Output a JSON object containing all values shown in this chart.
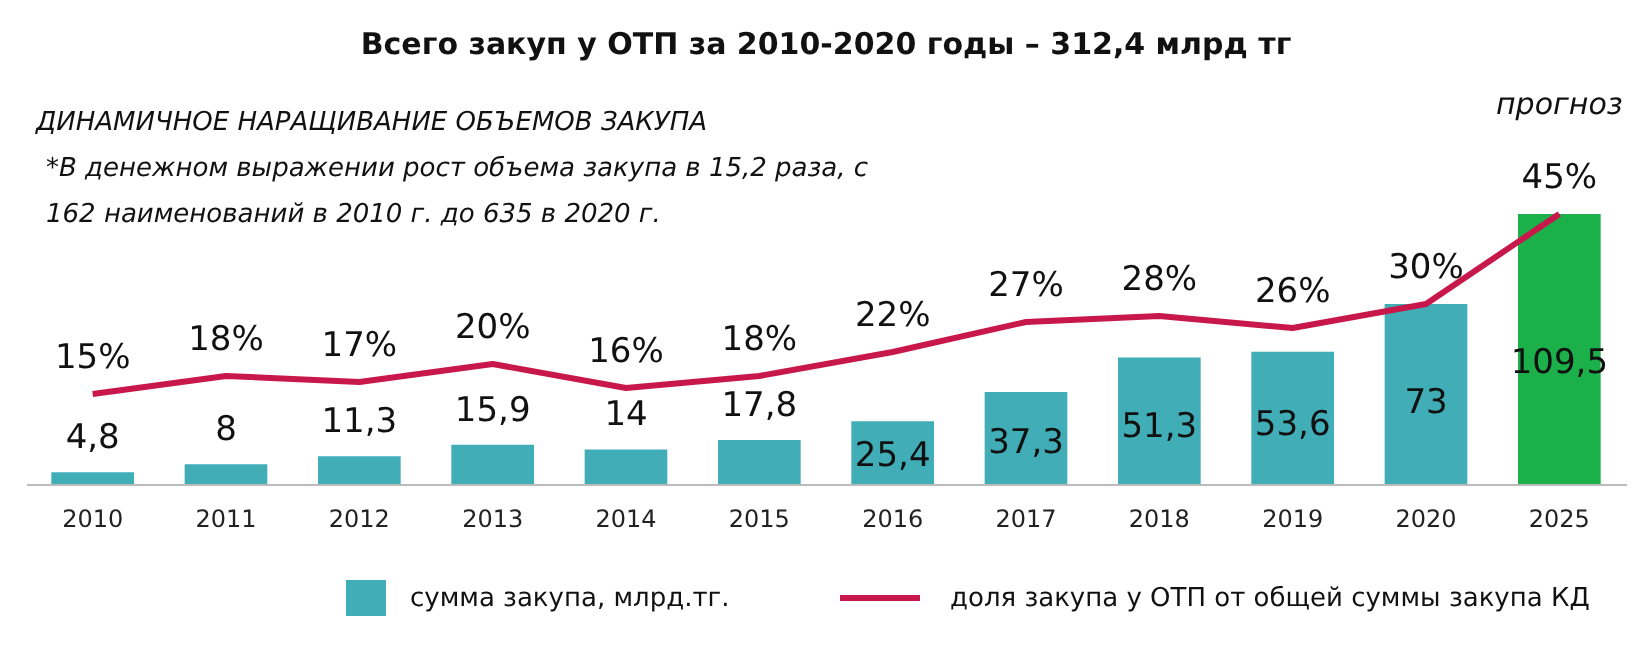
{
  "chart_data": {
    "type": "bar",
    "title": "Всего закуп у ОТП за 2010-2020 годы – 312,4 млрд тг",
    "subtitle": "ДИНАМИЧНОЕ НАРАЩИВАНИЕ ОБЪЕМОВ ЗАКУПА",
    "annotations": [
      "*В денежном выражении рост объема закупа в 15,2 раза, с 162 наименований в 2010 г. до 635 в 2020 г.",
      "прогноз"
    ],
    "categories": [
      "2010",
      "2011",
      "2012",
      "2013",
      "2014",
      "2015",
      "2016",
      "2017",
      "2018",
      "2019",
      "2020",
      "2025"
    ],
    "series": [
      {
        "name": "сумма закупа, млрд.тг.",
        "color": "#40adb7",
        "colors": [
          "#40adb7",
          "#40adb7",
          "#40adb7",
          "#40adb7",
          "#40adb7",
          "#40adb7",
          "#40adb7",
          "#40adb7",
          "#40adb7",
          "#40adb7",
          "#40adb7",
          "#1bb04a"
        ],
        "values": [
          4.8,
          8,
          11.3,
          15.9,
          14,
          17.8,
          25.4,
          37.3,
          51.3,
          53.6,
          73,
          109.5
        ],
        "value_labels": [
          "4,8",
          "8",
          "11,3",
          "15,9",
          "14",
          "17,8",
          "25,4",
          "37,3",
          "51,3",
          "53,6",
          "73",
          "109,5"
        ]
      },
      {
        "name": "доля закупа у ОТП от общей суммы закупа КД",
        "type": "line",
        "axis": "y2",
        "color": "#c8174a",
        "values": [
          15,
          18,
          17,
          20,
          16,
          18,
          22,
          27,
          28,
          26,
          30,
          45
        ],
        "value_labels": [
          "15%",
          "18%",
          "17%",
          "20%",
          "16%",
          "18%",
          "22%",
          "27%",
          "28%",
          "26%",
          "30%",
          "45%"
        ]
      }
    ],
    "tick_labels": "x",
    "grid": false,
    "legend": "bottom",
    "marker": "none",
    "line_style": "solid"
  }
}
